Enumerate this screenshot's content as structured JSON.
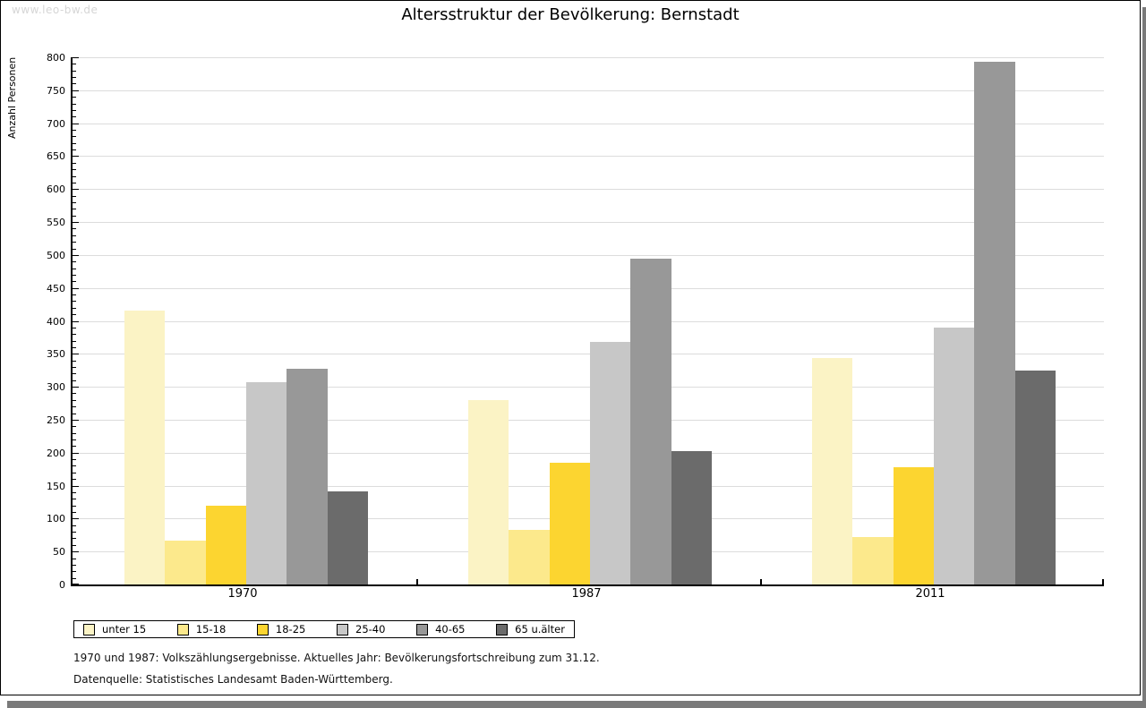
{
  "watermark": "www.leo-bw.de",
  "title": "Altersstruktur der Bevölkerung: Bernstadt",
  "chart_data": {
    "type": "bar",
    "title": "Altersstruktur der Bevölkerung: Bernstadt",
    "xlabel": "",
    "ylabel": "Anzahl Personen",
    "categories": [
      "1970",
      "1987",
      "2011"
    ],
    "series": [
      {
        "name": "unter 15",
        "color": "#fbf3c5",
        "values": [
          415,
          280,
          344
        ]
      },
      {
        "name": "15-18",
        "color": "#fce98c",
        "values": [
          67,
          83,
          72
        ]
      },
      {
        "name": "18-25",
        "color": "#fcd530",
        "values": [
          119,
          185,
          178
        ]
      },
      {
        "name": "25-40",
        "color": "#c7c7c7",
        "values": [
          307,
          368,
          390
        ]
      },
      {
        "name": "40-65",
        "color": "#989898",
        "values": [
          328,
          495,
          793
        ]
      },
      {
        "name": "65 u.älter",
        "color": "#6b6b6b",
        "values": [
          141,
          202,
          325
        ]
      }
    ],
    "ylim": [
      0,
      800
    ],
    "ytick_step": 50,
    "yminor_step": 10,
    "grid": true,
    "legend_position": "bottom"
  },
  "footnotes": {
    "line1": "1970 und 1987: Volkszählungsergebnisse. Aktuelles Jahr: Bevölkerungsfortschreibung zum 31.12.",
    "line2": "Datenquelle: Statistisches Landesamt Baden-Württemberg."
  },
  "colors": {
    "shadow": "#7a7a7a",
    "grid": "#dcdcdc",
    "axis": "#000000",
    "watermark": "#d6d6d6"
  }
}
